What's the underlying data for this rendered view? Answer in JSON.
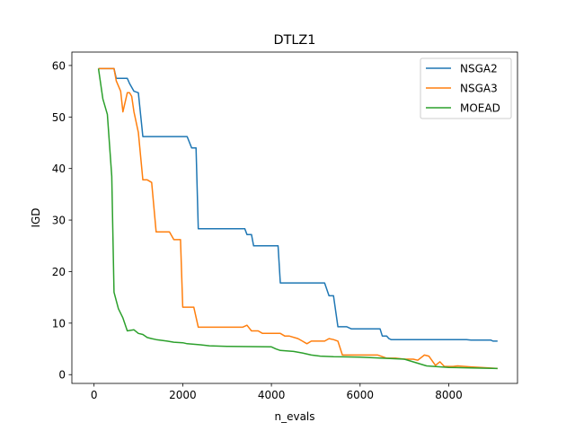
{
  "chart_data": {
    "type": "line",
    "title": "DTLZ1",
    "xlabel": "n_evals",
    "ylabel": "IGD",
    "xlim": [
      -500,
      9550
    ],
    "ylim": [
      -1.7,
      62.6
    ],
    "xticks": [
      0,
      2000,
      4000,
      6000,
      8000
    ],
    "xtick_labels": [
      "0",
      "2000",
      "4000",
      "6000",
      "8000"
    ],
    "yticks": [
      0,
      10,
      20,
      30,
      40,
      50,
      60
    ],
    "ytick_labels": [
      "0",
      "10",
      "20",
      "30",
      "40",
      "50",
      "60"
    ],
    "legend_position": "top-right",
    "series": [
      {
        "name": "NSGA2",
        "color": "#1f77b4",
        "x": [
          100,
          450,
          500,
          750,
          800,
          900,
          1000,
          1100,
          2100,
          2200,
          2300,
          2350,
          3400,
          3450,
          3550,
          3600,
          4150,
          4200,
          5200,
          5300,
          5400,
          5500,
          5700,
          5800,
          6450,
          6500,
          6600,
          6650,
          6700,
          6750,
          8400,
          8500,
          8950,
          9000,
          9100
        ],
        "y": [
          59.4,
          59.4,
          57.5,
          57.5,
          56.5,
          55.0,
          54.7,
          46.2,
          46.2,
          44.0,
          44.0,
          28.3,
          28.3,
          27.2,
          27.2,
          25.0,
          25.0,
          17.8,
          17.8,
          15.3,
          15.3,
          9.3,
          9.3,
          8.9,
          8.9,
          7.5,
          7.5,
          7.0,
          6.8,
          6.8,
          6.8,
          6.7,
          6.7,
          6.5,
          6.5
        ]
      },
      {
        "name": "NSGA3",
        "color": "#ff7f0e",
        "x": [
          100,
          200,
          450,
          500,
          600,
          650,
          750,
          800,
          850,
          900,
          1000,
          1100,
          1200,
          1300,
          1400,
          1700,
          1800,
          1950,
          2000,
          2250,
          2350,
          3350,
          3450,
          3550,
          3700,
          3800,
          4200,
          4300,
          4400,
          4600,
          4700,
          4800,
          4900,
          5200,
          5300,
          5400,
          5500,
          5600,
          6400,
          6500,
          6600,
          6800,
          7000,
          7200,
          7300,
          7450,
          7550,
          7700,
          7800,
          7900,
          8100,
          8200,
          8500,
          8900,
          9100
        ],
        "y": [
          59.4,
          59.4,
          59.4,
          57.0,
          55.0,
          51.0,
          54.7,
          54.7,
          54.0,
          51.0,
          47.0,
          37.8,
          37.8,
          37.3,
          27.7,
          27.7,
          26.2,
          26.2,
          13.1,
          13.1,
          9.2,
          9.2,
          9.6,
          8.5,
          8.5,
          8.0,
          8.0,
          7.5,
          7.5,
          7.0,
          6.5,
          6.0,
          6.5,
          6.5,
          7.0,
          6.8,
          6.5,
          3.8,
          3.8,
          3.5,
          3.2,
          3.2,
          3.0,
          3.0,
          2.8,
          3.8,
          3.6,
          1.8,
          2.5,
          1.6,
          1.6,
          1.7,
          1.5,
          1.3,
          1.2
        ]
      },
      {
        "name": "MOEAD",
        "color": "#2ca02c",
        "x": [
          100,
          200,
          300,
          400,
          450,
          550,
          650,
          750,
          900,
          1000,
          1100,
          1200,
          1300,
          1400,
          1650,
          1800,
          2000,
          2100,
          2400,
          2600,
          3000,
          4000,
          4100,
          4200,
          4500,
          4700,
          4900,
          5100,
          5400,
          6000,
          6500,
          7000,
          7500,
          8000,
          8500,
          9100
        ],
        "y": [
          59.4,
          53.5,
          50.5,
          38.5,
          16.0,
          12.8,
          11.0,
          8.5,
          8.7,
          8.0,
          7.8,
          7.2,
          7.0,
          6.8,
          6.5,
          6.3,
          6.2,
          6.0,
          5.8,
          5.6,
          5.5,
          5.4,
          5.0,
          4.7,
          4.5,
          4.2,
          3.8,
          3.6,
          3.5,
          3.4,
          3.2,
          3.0,
          1.7,
          1.4,
          1.3,
          1.2
        ]
      }
    ]
  }
}
